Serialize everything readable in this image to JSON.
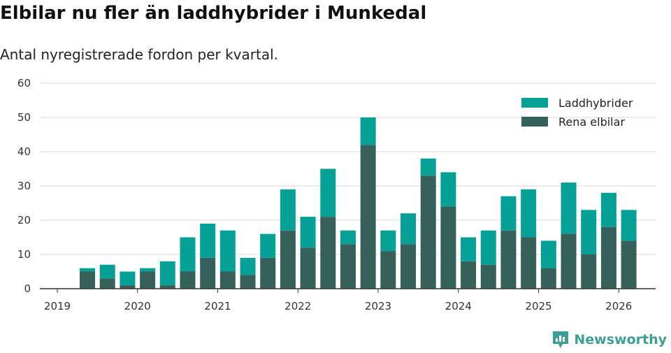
{
  "title": "Elbilar nu fler än laddhybrider i Munkedal",
  "subtitle": "Antal nyregistrerade fordon per kvartal.",
  "brand": "Newsworthy",
  "colors": {
    "hybrid": "#05a197",
    "electric": "#35615a",
    "grid": "#d9d9d9",
    "axis": "#333333",
    "brand": "#3e9e95"
  },
  "chart_data": {
    "type": "bar",
    "stacked": true,
    "title": "Elbilar nu fler än laddhybrider i Munkedal",
    "subtitle": "Antal nyregistrerade fordon per kvartal.",
    "xlabel": "",
    "ylabel": "",
    "ylim": [
      0,
      60
    ],
    "yticks": [
      0,
      10,
      20,
      30,
      40,
      50,
      60
    ],
    "xticks": [
      "2019",
      "2020",
      "2021",
      "2022",
      "2023",
      "2024",
      "2025",
      "2026"
    ],
    "legend_position": "top-right",
    "categories": [
      "2019 Q2",
      "2019 Q3",
      "2019 Q4",
      "2020 Q1",
      "2020 Q2",
      "2020 Q3",
      "2020 Q4",
      "2021 Q1",
      "2021 Q2",
      "2021 Q3",
      "2021 Q4",
      "2022 Q1",
      "2022 Q2",
      "2022 Q3",
      "2022 Q4",
      "2023 Q1",
      "2023 Q2",
      "2023 Q3",
      "2023 Q4",
      "2024 Q1",
      "2024 Q2",
      "2024 Q3",
      "2024 Q4",
      "2025 Q1",
      "2025 Q2",
      "2025 Q3",
      "2025 Q4",
      "2026 Q1"
    ],
    "series": [
      {
        "name": "Rena elbilar",
        "values": [
          5,
          3,
          1,
          5,
          1,
          5,
          9,
          5,
          4,
          9,
          17,
          12,
          21,
          13,
          42,
          11,
          13,
          33,
          24,
          8,
          7,
          17,
          15,
          6,
          16,
          10,
          18,
          14
        ]
      },
      {
        "name": "Laddhybrider",
        "values": [
          1,
          4,
          4,
          1,
          7,
          10,
          10,
          12,
          5,
          7,
          12,
          9,
          14,
          4,
          8,
          6,
          9,
          5,
          10,
          7,
          10,
          10,
          14,
          8,
          15,
          13,
          10,
          9
        ]
      }
    ]
  }
}
